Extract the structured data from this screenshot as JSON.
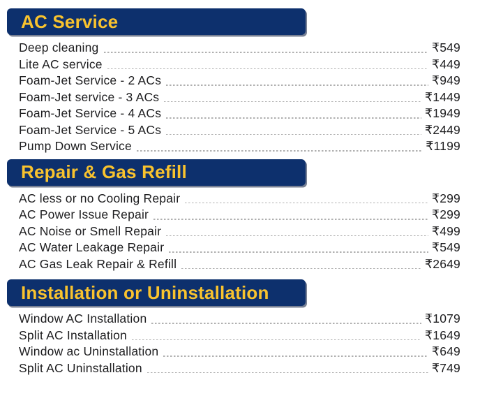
{
  "currency_symbol": "₹",
  "colors": {
    "page_bg": "#ffffff",
    "header_bg": "#0d306d",
    "header_shadow": "#09183a",
    "header_text": "#f9c32e",
    "item_text": "#1d1d1f",
    "leader_gray": "#b0b0b0"
  },
  "sections": [
    {
      "title": "AC Service",
      "items": [
        {
          "name": "Deep cleaning",
          "price": "₹549"
        },
        {
          "name": "Lite AC service",
          "price": "₹449"
        },
        {
          "name": "Foam-Jet Service - 2 ACs",
          "price": "₹949"
        },
        {
          "name": "Foam-Jet service - 3 ACs",
          "price": "₹1449"
        },
        {
          "name": "Foam-Jet Service - 4 ACs",
          "price": "₹1949"
        },
        {
          "name": "Foam-Jet Service - 5 ACs",
          "price": "₹2449"
        },
        {
          "name": "Pump Down Service",
          "price": "₹1199"
        }
      ]
    },
    {
      "title": "Repair & Gas Refill",
      "items": [
        {
          "name": "AC less or no Cooling Repair",
          "price": "₹299"
        },
        {
          "name": "AC Power Issue Repair",
          "price": "₹299"
        },
        {
          "name": "AC Noise or Smell Repair",
          "price": "₹499"
        },
        {
          "name": "AC Water Leakage Repair",
          "price": "₹549"
        },
        {
          "name": "AC Gas Leak Repair & Refill",
          "price": "₹2649"
        }
      ]
    },
    {
      "title": "Installation or Uninstallation",
      "items": [
        {
          "name": "Window AC Installation",
          "price": "₹1079"
        },
        {
          "name": "Split AC Installation",
          "price": "₹1649"
        },
        {
          "name": "Window ac Uninstallation",
          "price": "₹649"
        },
        {
          "name": "Split AC Uninstallation",
          "price": "₹749"
        }
      ]
    }
  ]
}
